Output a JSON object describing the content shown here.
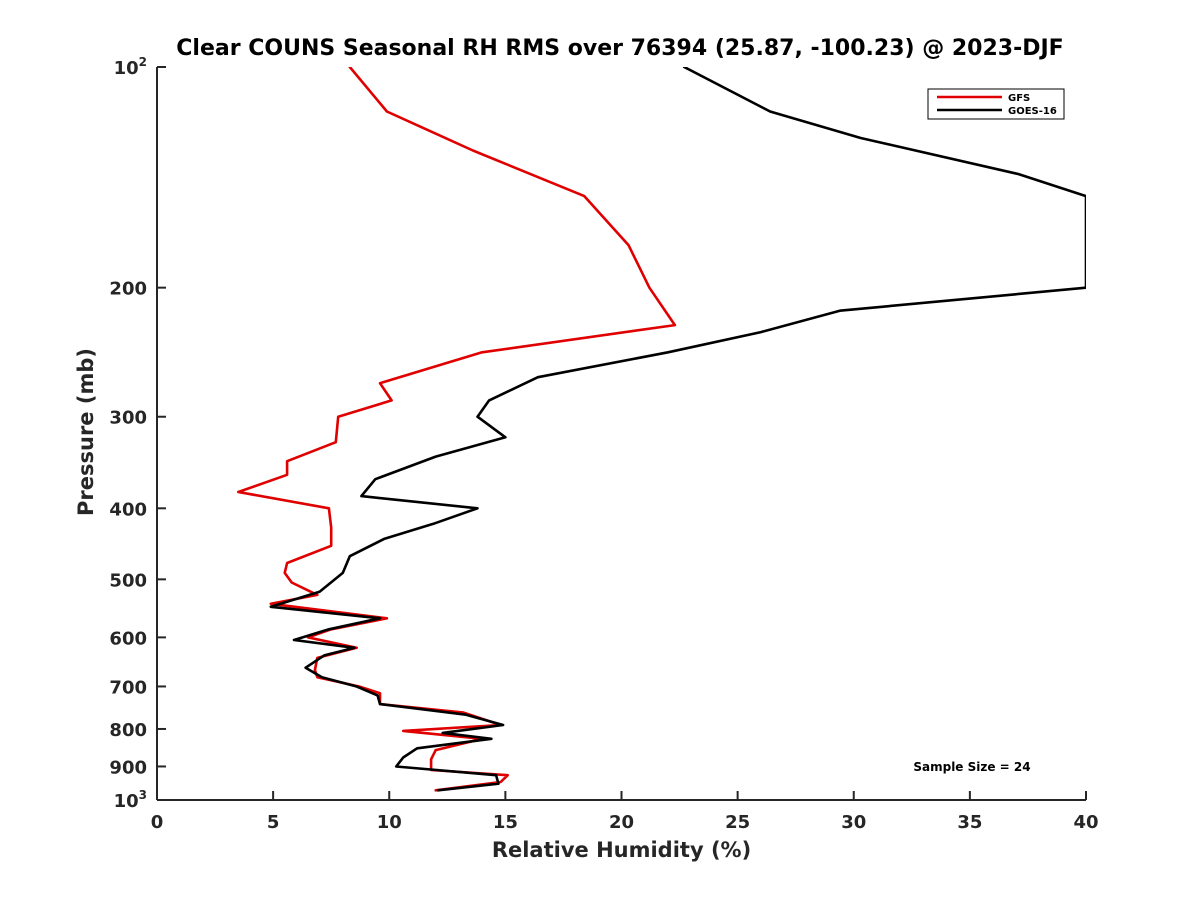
{
  "chart_data": {
    "type": "line",
    "title": "Clear COUNS Seasonal RH RMS over 76394 (25.87, -100.23) @ 2023-DJF",
    "xlabel": "Relative Humidity (%)",
    "ylabel": "Pressure (mb)",
    "xlim": [
      0,
      40
    ],
    "ylim": [
      100,
      1000
    ],
    "yscale": "log",
    "yreversed": true,
    "x_ticks": [
      0,
      5,
      10,
      15,
      20,
      25,
      30,
      35,
      40
    ],
    "x_tick_labels": [
      "0",
      "5",
      "10",
      "15",
      "20",
      "25",
      "30",
      "35",
      "40"
    ],
    "y_ticks": [
      200,
      300,
      400,
      500,
      600,
      700,
      800,
      900
    ],
    "y_tick_labels": [
      "200",
      "300",
      "400",
      "500",
      "600",
      "700",
      "800",
      "900"
    ],
    "y_minor_labels": [
      {
        "value": 100,
        "base": "10",
        "exp": "2"
      },
      {
        "value": 1000,
        "base": "10",
        "exp": "3"
      }
    ],
    "legend_position": "top-right",
    "annotation": "Sample Size = 24",
    "series": [
      {
        "name": "GFS",
        "color": "#e00000",
        "points": [
          [
            8.3,
            100
          ],
          [
            9.9,
            115
          ],
          [
            13.6,
            130
          ],
          [
            18.4,
            150
          ],
          [
            20.3,
            175
          ],
          [
            21.2,
            200
          ],
          [
            22.3,
            225
          ],
          [
            14.0,
            245
          ],
          [
            9.6,
            270
          ],
          [
            10.1,
            285
          ],
          [
            7.8,
            300
          ],
          [
            7.7,
            325
          ],
          [
            5.6,
            345
          ],
          [
            5.6,
            360
          ],
          [
            3.5,
            380
          ],
          [
            7.4,
            400
          ],
          [
            7.5,
            425
          ],
          [
            7.5,
            450
          ],
          [
            5.6,
            475
          ],
          [
            5.5,
            490
          ],
          [
            5.8,
            505
          ],
          [
            6.9,
            525
          ],
          [
            4.9,
            540
          ],
          [
            9.9,
            565
          ],
          [
            7.5,
            585
          ],
          [
            6.5,
            600
          ],
          [
            8.6,
            620
          ],
          [
            6.9,
            640
          ],
          [
            6.8,
            665
          ],
          [
            6.9,
            680
          ],
          [
            8.7,
            700
          ],
          [
            9.6,
            715
          ],
          [
            9.6,
            740
          ],
          [
            13.2,
            760
          ],
          [
            14.8,
            790
          ],
          [
            10.6,
            805
          ],
          [
            14.0,
            825
          ],
          [
            12.0,
            855
          ],
          [
            11.8,
            880
          ],
          [
            11.8,
            910
          ],
          [
            15.1,
            925
          ],
          [
            14.8,
            945
          ],
          [
            12.0,
            970
          ]
        ]
      },
      {
        "name": "GOES-16",
        "color": "#000000",
        "points": [
          [
            22.7,
            100
          ],
          [
            26.4,
            115
          ],
          [
            30.3,
            125
          ],
          [
            37.1,
            140
          ],
          [
            40.0,
            150
          ],
          [
            40.0,
            200
          ],
          [
            29.4,
            215
          ],
          [
            26.0,
            230
          ],
          [
            22.0,
            245
          ],
          [
            16.4,
            265
          ],
          [
            14.3,
            285
          ],
          [
            13.8,
            300
          ],
          [
            15.0,
            320
          ],
          [
            12.0,
            340
          ],
          [
            9.4,
            365
          ],
          [
            8.8,
            385
          ],
          [
            13.8,
            400
          ],
          [
            11.9,
            420
          ],
          [
            9.8,
            440
          ],
          [
            8.3,
            465
          ],
          [
            8.0,
            490
          ],
          [
            7.0,
            520
          ],
          [
            4.9,
            545
          ],
          [
            9.6,
            565
          ],
          [
            7.4,
            585
          ],
          [
            5.9,
            605
          ],
          [
            8.5,
            620
          ],
          [
            7.2,
            635
          ],
          [
            6.4,
            660
          ],
          [
            7.1,
            680
          ],
          [
            8.6,
            700
          ],
          [
            9.5,
            720
          ],
          [
            9.6,
            740
          ],
          [
            13.3,
            765
          ],
          [
            14.9,
            790
          ],
          [
            12.3,
            810
          ],
          [
            14.4,
            825
          ],
          [
            11.2,
            850
          ],
          [
            10.6,
            875
          ],
          [
            10.3,
            900
          ],
          [
            14.6,
            925
          ],
          [
            14.7,
            950
          ],
          [
            12.1,
            970
          ]
        ]
      }
    ]
  }
}
